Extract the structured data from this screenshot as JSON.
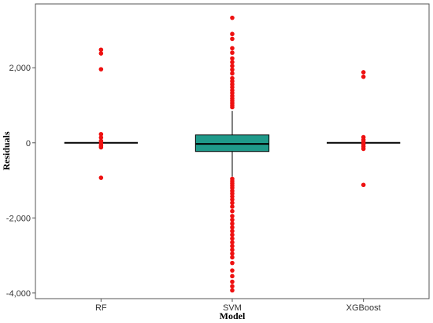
{
  "chart_data": {
    "type": "box",
    "title": "",
    "xlabel": "Model",
    "ylabel": "Residuals",
    "ylim": [
      -4150,
      3700
    ],
    "yticks": [
      {
        "value": 2000,
        "label": "2,000"
      },
      {
        "value": 0,
        "label": "0"
      },
      {
        "value": -2000,
        "label": "-2,000"
      },
      {
        "value": -4000,
        "label": "-4,000"
      }
    ],
    "grid": false,
    "legend": "none",
    "categories": [
      "RF",
      "SVM",
      "XGBoost"
    ],
    "colors": {
      "box_fill": "#1f9a8a",
      "outlier": "#ee1111",
      "median": "#000000",
      "frame": "#555555"
    },
    "boxes": [
      {
        "category": "RF",
        "q1": 0,
        "median": 0,
        "q3": 0,
        "whisker_low": 0,
        "whisker_high": 0,
        "outliers": [
          2480,
          2380,
          1960,
          230,
          140,
          50,
          -20,
          -80,
          -120,
          -930
        ]
      },
      {
        "category": "SVM",
        "q1": -230,
        "median": -30,
        "q3": 210,
        "whisker_low": -900,
        "whisker_high": 850,
        "outliers": [
          3330,
          2900,
          2770,
          2520,
          2400,
          2250,
          2150,
          2050,
          1950,
          1850,
          1720,
          1640,
          1560,
          1480,
          1400,
          1330,
          1250,
          1180,
          1120,
          1060,
          1000,
          950,
          -960,
          -1020,
          -1080,
          -1140,
          -1200,
          -1280,
          -1350,
          -1430,
          -1510,
          -1600,
          -1700,
          -1820,
          -1950,
          -2050,
          -2150,
          -2250,
          -2350,
          -2450,
          -2550,
          -2650,
          -2750,
          -2850,
          -2950,
          -3050,
          -3200,
          -3400,
          -3550,
          -3700,
          -3820,
          -3930
        ]
      },
      {
        "category": "XGBoost",
        "q1": 0,
        "median": 0,
        "q3": 0,
        "whisker_low": 0,
        "whisker_high": 0,
        "outliers": [
          1880,
          1760,
          150,
          80,
          20,
          -40,
          -100,
          -160,
          -1120
        ]
      }
    ]
  }
}
